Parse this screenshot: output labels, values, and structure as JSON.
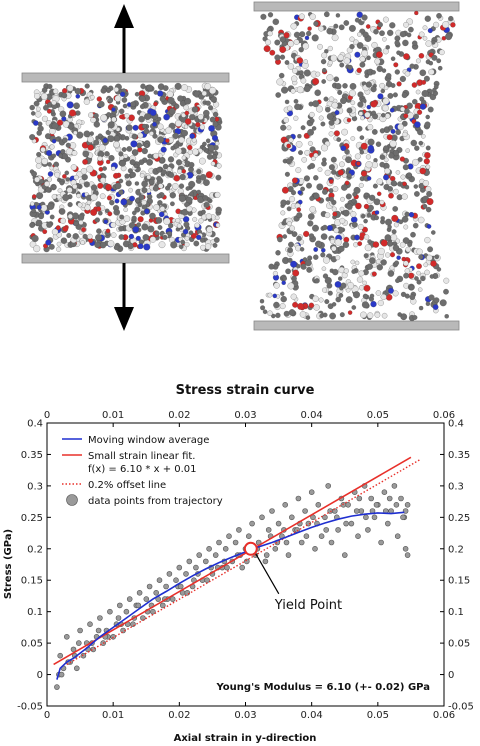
{
  "figure": {
    "annotation": "Yield Point",
    "modulus_text": "Young's Modulus = 6.10 (+- 0.02) GPa"
  },
  "colors": {
    "moving_average": "#1f2fd0",
    "linear_fit": "#e8302a",
    "offset_line": "#e8302a",
    "points_fill": "#9a9a9a",
    "atom_carbon": "#6d6d6d",
    "atom_hydrogen": "#e6e6e6",
    "atom_oxygen": "#d22a2a",
    "atom_nitrogen": "#2a39c8",
    "plate": "#b9b9b9"
  },
  "chart_data": {
    "type": "scatter",
    "title": "Stress strain curve",
    "xlabel": "Axial strain in y-direction",
    "ylabel": "Stress (GPa)",
    "xlim": [
      0,
      0.06
    ],
    "ylim": [
      -0.05,
      0.4
    ],
    "xticks": [
      "0",
      "0.01",
      "0.02",
      "0.03",
      "0.04",
      "0.05",
      "0.06"
    ],
    "yticks": [
      "-0.05",
      "0",
      "0.05",
      "0.1",
      "0.15",
      "0.2",
      "0.25",
      "0.3",
      "0.35",
      "0.4"
    ],
    "legend_position": "top-left",
    "grid": false,
    "fit": {
      "slope": 6.1,
      "intercept": 0.01
    },
    "series": [
      {
        "name": "Moving window average",
        "kind": "line",
        "x": [
          0.0015,
          0.002,
          0.003,
          0.004,
          0.006,
          0.008,
          0.01,
          0.012,
          0.014,
          0.016,
          0.018,
          0.02,
          0.022,
          0.024,
          0.026,
          0.028,
          0.03,
          0.032,
          0.034,
          0.036,
          0.038,
          0.04,
          0.042,
          0.044,
          0.046,
          0.048,
          0.05,
          0.052,
          0.054
        ],
        "y": [
          -0.008,
          0.01,
          0.02,
          0.026,
          0.042,
          0.06,
          0.075,
          0.09,
          0.105,
          0.12,
          0.132,
          0.145,
          0.157,
          0.168,
          0.178,
          0.187,
          0.195,
          0.203,
          0.21,
          0.218,
          0.226,
          0.234,
          0.241,
          0.247,
          0.252,
          0.255,
          0.257,
          0.256,
          0.258
        ]
      },
      {
        "name": "Small strain linear fit.\nf(x) = 6.10 * x + 0.01",
        "kind": "line",
        "x": [
          0.001,
          0.055
        ],
        "y": [
          0.0161,
          0.3455
        ]
      },
      {
        "name": "0.2% offset line",
        "kind": "dotted-line",
        "x": [
          0.003,
          0.0565
        ],
        "y": [
          0.0161,
          0.3425
        ]
      },
      {
        "name": "data points from trajectory",
        "kind": "scatter",
        "x": [
          0.0015,
          0.002,
          0.0025,
          0.003,
          0.0035,
          0.004,
          0.0045,
          0.005,
          0.0055,
          0.006,
          0.0065,
          0.007,
          0.0075,
          0.008,
          0.0085,
          0.009,
          0.0095,
          0.01,
          0.0105,
          0.011,
          0.0115,
          0.012,
          0.0125,
          0.013,
          0.0135,
          0.014,
          0.0145,
          0.015,
          0.0155,
          0.016,
          0.0165,
          0.017,
          0.0175,
          0.018,
          0.0185,
          0.019,
          0.0195,
          0.02,
          0.0205,
          0.021,
          0.0215,
          0.022,
          0.0225,
          0.023,
          0.0235,
          0.024,
          0.0245,
          0.025,
          0.0255,
          0.026,
          0.0265,
          0.027,
          0.0275,
          0.028,
          0.0285,
          0.029,
          0.0295,
          0.03,
          0.0305,
          0.031,
          0.0315,
          0.032,
          0.0325,
          0.033,
          0.0335,
          0.034,
          0.0345,
          0.035,
          0.0355,
          0.036,
          0.0365,
          0.037,
          0.0375,
          0.038,
          0.0385,
          0.039,
          0.0395,
          0.04,
          0.0405,
          0.041,
          0.0415,
          0.042,
          0.0425,
          0.043,
          0.0435,
          0.044,
          0.0445,
          0.045,
          0.0455,
          0.046,
          0.0465,
          0.047,
          0.0475,
          0.048,
          0.0485,
          0.049,
          0.0495,
          0.05,
          0.0505,
          0.051,
          0.0515,
          0.052,
          0.0525,
          0.053,
          0.0535,
          0.054,
          0.0545,
          0.0018,
          0.0032,
          0.0048,
          0.0062,
          0.0078,
          0.0092,
          0.0108,
          0.0122,
          0.0138,
          0.0152,
          0.0168,
          0.0182,
          0.0198,
          0.0212,
          0.0228,
          0.0242,
          0.0258,
          0.0272,
          0.0288,
          0.0302,
          0.0318,
          0.0332,
          0.0348,
          0.0362,
          0.0378,
          0.0392,
          0.0408,
          0.0422,
          0.0438,
          0.0452,
          0.0468,
          0.0482,
          0.0498,
          0.0512,
          0.0528,
          0.0542,
          0.0022,
          0.0042,
          0.0068,
          0.0088,
          0.0112,
          0.0132,
          0.0158,
          0.0178,
          0.0202,
          0.0222,
          0.0248,
          0.0268,
          0.0292,
          0.0312,
          0.0338,
          0.0358,
          0.0382,
          0.0402,
          0.0428,
          0.0448,
          0.0472,
          0.0492,
          0.0518,
          0.0538,
          0.0545,
          0.0542
        ],
        "y": [
          -0.02,
          0.03,
          0.01,
          0.06,
          0.02,
          0.04,
          0.01,
          0.07,
          0.03,
          0.05,
          0.08,
          0.04,
          0.06,
          0.09,
          0.05,
          0.07,
          0.1,
          0.06,
          0.08,
          0.11,
          0.07,
          0.1,
          0.12,
          0.08,
          0.11,
          0.13,
          0.09,
          0.12,
          0.14,
          0.1,
          0.13,
          0.15,
          0.11,
          0.14,
          0.16,
          0.12,
          0.15,
          0.17,
          0.13,
          0.16,
          0.18,
          0.14,
          0.17,
          0.19,
          0.15,
          0.18,
          0.2,
          0.16,
          0.19,
          0.21,
          0.17,
          0.2,
          0.22,
          0.18,
          0.21,
          0.23,
          0.17,
          0.2,
          0.22,
          0.24,
          0.19,
          0.21,
          0.25,
          0.18,
          0.23,
          0.26,
          0.2,
          0.24,
          0.22,
          0.27,
          0.19,
          0.25,
          0.23,
          0.28,
          0.21,
          0.26,
          0.24,
          0.29,
          0.2,
          0.27,
          0.22,
          0.25,
          0.3,
          0.21,
          0.26,
          0.23,
          0.28,
          0.19,
          0.27,
          0.24,
          0.29,
          0.22,
          0.26,
          0.3,
          0.23,
          0.28,
          0.25,
          0.27,
          0.21,
          0.29,
          0.24,
          0.26,
          0.3,
          0.22,
          0.28,
          0.25,
          0.27,
          0.0,
          0.02,
          0.05,
          0.04,
          0.07,
          0.06,
          0.09,
          0.08,
          0.11,
          0.1,
          0.12,
          0.12,
          0.14,
          0.13,
          0.16,
          0.15,
          0.17,
          0.17,
          0.19,
          0.18,
          0.2,
          0.19,
          0.21,
          0.21,
          0.23,
          0.22,
          0.24,
          0.23,
          0.25,
          0.24,
          0.26,
          0.25,
          0.27,
          0.26,
          0.27,
          0.26,
          0.0,
          0.03,
          0.05,
          0.06,
          0.08,
          0.09,
          0.11,
          0.12,
          0.14,
          0.15,
          0.17,
          0.18,
          0.19,
          0.2,
          0.22,
          0.23,
          0.24,
          0.25,
          0.26,
          0.27,
          0.28,
          0.26,
          0.28,
          0.25,
          0.19,
          0.2
        ]
      }
    ],
    "yield_point": {
      "x": 0.0308,
      "y": 0.2
    }
  }
}
